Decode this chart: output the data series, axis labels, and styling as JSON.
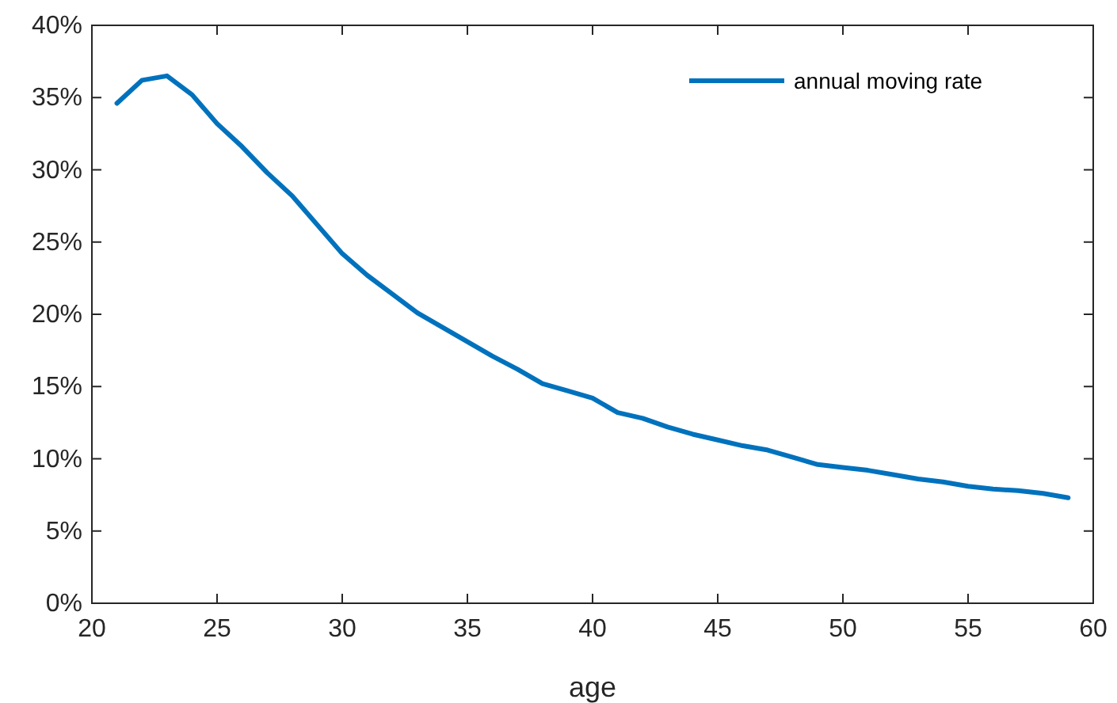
{
  "chart_data": {
    "type": "line",
    "xlabel": "age",
    "x": [
      21,
      22,
      23,
      24,
      25,
      26,
      27,
      28,
      29,
      30,
      31,
      32,
      33,
      34,
      35,
      36,
      37,
      38,
      39,
      40,
      41,
      42,
      43,
      44,
      45,
      46,
      47,
      48,
      49,
      50,
      51,
      52,
      53,
      54,
      55,
      56,
      57,
      58,
      59
    ],
    "series": [
      {
        "name": "annual moving rate",
        "color": "#0072bd",
        "values": [
          34.6,
          36.2,
          36.5,
          35.2,
          33.2,
          31.6,
          29.8,
          28.2,
          26.2,
          24.2,
          22.7,
          21.4,
          20.1,
          19.1,
          18.1,
          17.1,
          16.2,
          15.2,
          14.7,
          14.2,
          13.2,
          12.8,
          12.2,
          11.7,
          11.3,
          10.9,
          10.6,
          10.1,
          9.6,
          9.4,
          9.2,
          8.9,
          8.6,
          8.4,
          8.1,
          7.9,
          7.8,
          7.6,
          7.3
        ]
      }
    ],
    "xlim": [
      20,
      60
    ],
    "xticks": [
      20,
      25,
      30,
      35,
      40,
      45,
      50,
      55,
      60
    ],
    "ylim": [
      0,
      40
    ],
    "yticks": [
      {
        "value": 0,
        "label": "0%"
      },
      {
        "value": 5,
        "label": "5%"
      },
      {
        "value": 10,
        "label": "10%"
      },
      {
        "value": 15,
        "label": "15%"
      },
      {
        "value": 20,
        "label": "20%"
      },
      {
        "value": 25,
        "label": "25%"
      },
      {
        "value": 30,
        "label": "30%"
      },
      {
        "value": 35,
        "label": "35%"
      },
      {
        "value": 40,
        "label": "40%"
      }
    ],
    "legend": "top right",
    "grid": false,
    "marker": "none",
    "line_style": "solid"
  }
}
